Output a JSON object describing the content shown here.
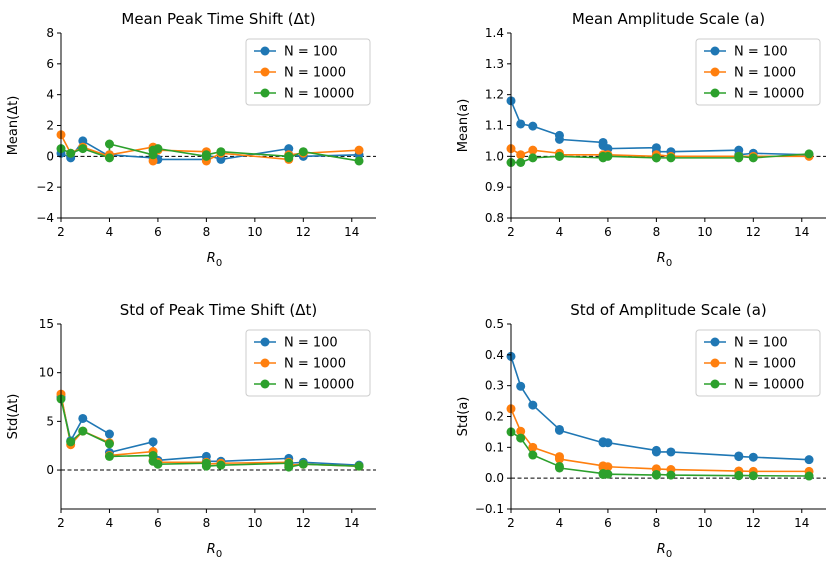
{
  "figure": {
    "background": "#ffffff"
  },
  "series_colors": [
    "#1f77b4",
    "#ff7f0e",
    "#2ca02c"
  ],
  "chart_data": [
    {
      "type": "line",
      "title": "Mean Peak Time Shift (Δt)",
      "xlabel": "R",
      "xlabel_sub": "0",
      "ylabel": "Mean(Δt)",
      "xlim": [
        2,
        15
      ],
      "ylim": [
        -4,
        8
      ],
      "xticks": [
        2,
        4,
        6,
        8,
        10,
        12,
        14
      ],
      "yticks": [
        -4,
        -2,
        0,
        2,
        4,
        6,
        8
      ],
      "ytick_labels": [
        "−4",
        "−2",
        "0",
        "2",
        "4",
        "6",
        "8"
      ],
      "reference_line": 0,
      "legend_position": "top-right",
      "x": [
        2.0,
        2.4,
        2.9,
        4.0,
        4.0,
        5.8,
        5.8,
        6.0,
        8.0,
        8.0,
        8.6,
        11.4,
        11.4,
        12.0,
        14.3
      ],
      "series": [
        {
          "name": "N = 100",
          "values": [
            0.2,
            -0.1,
            1.0,
            0.0,
            0.1,
            -0.1,
            0.1,
            -0.2,
            -0.2,
            0.1,
            -0.2,
            0.5,
            0.1,
            0.0,
            0.1
          ]
        },
        {
          "name": "N = 1000",
          "values": [
            1.4,
            0.2,
            0.6,
            0.0,
            0.1,
            0.6,
            -0.3,
            0.4,
            0.3,
            -0.3,
            0.2,
            -0.2,
            0.1,
            0.2,
            0.4
          ]
        },
        {
          "name": "N = 10000",
          "values": [
            0.5,
            0.2,
            0.5,
            -0.1,
            0.8,
            0.1,
            0.4,
            0.5,
            0.0,
            0.1,
            0.3,
            0.0,
            -0.1,
            0.3,
            -0.3
          ]
        }
      ]
    },
    {
      "type": "line",
      "title": "Mean Amplitude Scale (a)",
      "xlabel": "R",
      "xlabel_sub": "0",
      "ylabel": "Mean(a)",
      "xlim": [
        2,
        15
      ],
      "ylim": [
        0.8,
        1.4
      ],
      "xticks": [
        2,
        4,
        6,
        8,
        10,
        12,
        14
      ],
      "yticks": [
        0.8,
        0.9,
        1.0,
        1.1,
        1.2,
        1.3,
        1.4
      ],
      "ytick_labels": [
        "0.8",
        "0.9",
        "1.0",
        "1.1",
        "1.2",
        "1.3",
        "1.4"
      ],
      "reference_line": 1.0,
      "legend_position": "top-right",
      "x": [
        2.0,
        2.4,
        2.9,
        4.0,
        4.0,
        5.8,
        5.8,
        6.0,
        8.0,
        8.0,
        8.6,
        11.4,
        11.4,
        12.0,
        14.3
      ],
      "series": [
        {
          "name": "N = 100",
          "values": [
            1.18,
            1.105,
            1.098,
            1.068,
            1.055,
            1.045,
            1.035,
            1.025,
            1.028,
            1.015,
            1.015,
            1.02,
            1.005,
            1.01,
            1.005
          ]
        },
        {
          "name": "N = 1000",
          "values": [
            1.025,
            1.005,
            1.02,
            1.01,
            1.005,
            1.005,
            1.0,
            1.005,
            1.0,
            1.005,
            1.0,
            1.0,
            1.0,
            1.0,
            1.0
          ]
        },
        {
          "name": "N = 10000",
          "values": [
            0.98,
            0.98,
            0.995,
            1.0,
            1.0,
            0.995,
            1.0,
            1.0,
            0.995,
            0.995,
            0.995,
            0.995,
            1.0,
            0.995,
            1.008
          ]
        }
      ]
    },
    {
      "type": "line",
      "title": "Std of Peak Time Shift (Δt)",
      "xlabel": "R",
      "xlabel_sub": "0",
      "ylabel": "Std(Δt)",
      "xlim": [
        2,
        15
      ],
      "ylim": [
        -4,
        15
      ],
      "xticks": [
        2,
        4,
        6,
        8,
        10,
        12,
        14
      ],
      "yticks": [
        0,
        5,
        10,
        15
      ],
      "ytick_labels": [
        "0",
        "5",
        "10",
        "15"
      ],
      "reference_line": 0,
      "legend_position": "top-right",
      "x": [
        2.0,
        2.4,
        2.9,
        4.0,
        4.0,
        5.8,
        5.8,
        6.0,
        8.0,
        8.0,
        8.6,
        11.4,
        11.4,
        12.0,
        14.3
      ],
      "series": [
        {
          "name": "N = 100",
          "values": [
            7.5,
            3.0,
            5.3,
            3.7,
            1.8,
            2.9,
            1.5,
            1.0,
            1.4,
            0.9,
            0.9,
            1.2,
            0.7,
            0.8,
            0.5
          ]
        },
        {
          "name": "N = 1000",
          "values": [
            7.8,
            2.6,
            4.0,
            2.8,
            1.5,
            1.9,
            1.0,
            0.8,
            0.8,
            0.6,
            0.7,
            0.8,
            0.5,
            0.6,
            0.4
          ]
        },
        {
          "name": "N = 10000",
          "values": [
            7.3,
            2.9,
            4.0,
            2.7,
            1.4,
            1.5,
            0.9,
            0.6,
            0.7,
            0.4,
            0.5,
            0.7,
            0.3,
            0.6,
            0.4
          ]
        }
      ]
    },
    {
      "type": "line",
      "title": "Std of Amplitude Scale (a)",
      "xlabel": "R",
      "xlabel_sub": "0",
      "ylabel": "Std(a)",
      "xlim": [
        2,
        15
      ],
      "ylim": [
        -0.1,
        0.5
      ],
      "xticks": [
        2,
        4,
        6,
        8,
        10,
        12,
        14
      ],
      "yticks": [
        -0.1,
        0.0,
        0.1,
        0.2,
        0.3,
        0.4,
        0.5
      ],
      "ytick_labels": [
        "−0.1",
        "0.0",
        "0.1",
        "0.2",
        "0.3",
        "0.4",
        "0.5"
      ],
      "reference_line": 0,
      "legend_position": "top-right",
      "x": [
        2.0,
        2.4,
        2.9,
        4.0,
        4.0,
        5.8,
        5.8,
        6.0,
        8.0,
        8.0,
        8.6,
        11.4,
        11.4,
        12.0,
        14.3
      ],
      "series": [
        {
          "name": "N = 100",
          "values": [
            0.395,
            0.298,
            0.237,
            0.158,
            0.155,
            0.115,
            0.118,
            0.115,
            0.09,
            0.085,
            0.085,
            0.072,
            0.07,
            0.068,
            0.06
          ]
        },
        {
          "name": "N = 1000",
          "values": [
            0.225,
            0.152,
            0.1,
            0.07,
            0.062,
            0.04,
            0.035,
            0.037,
            0.03,
            0.03,
            0.028,
            0.023,
            0.023,
            0.022,
            0.022
          ]
        },
        {
          "name": "N = 10000",
          "values": [
            0.15,
            0.13,
            0.075,
            0.038,
            0.033,
            0.015,
            0.012,
            0.013,
            0.01,
            0.012,
            0.01,
            0.008,
            0.009,
            0.008,
            0.007
          ]
        }
      ]
    }
  ]
}
